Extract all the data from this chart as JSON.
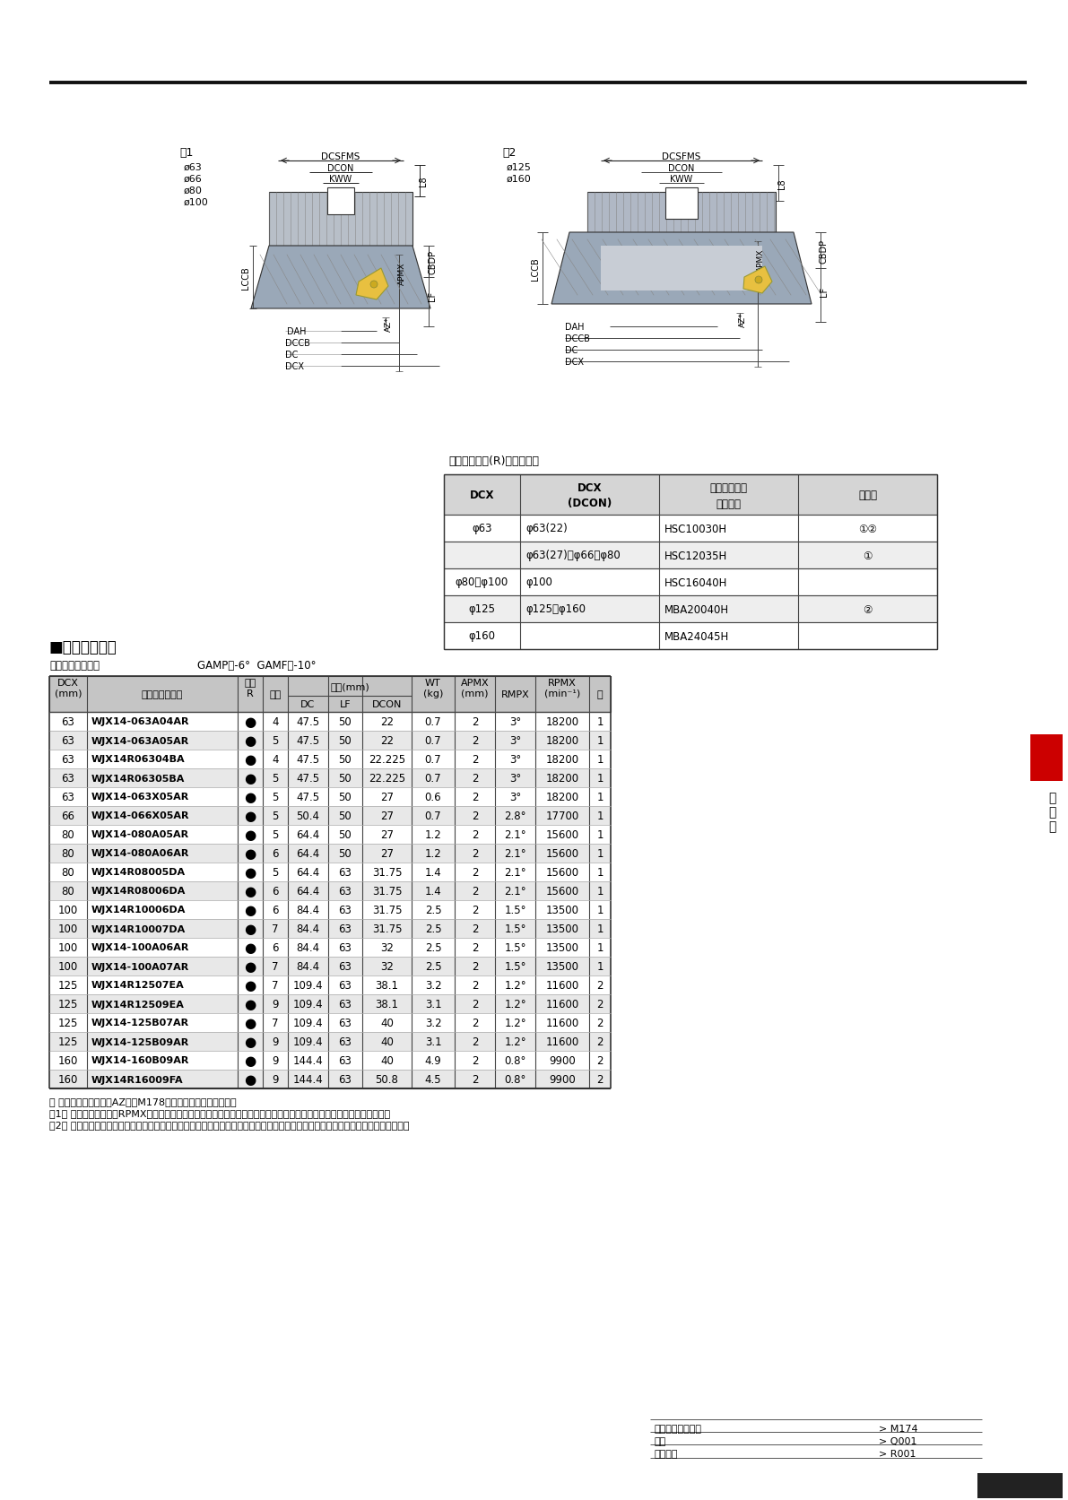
{
  "spec_note": "規格は右勝手(R)のみです。",
  "ax_star_note": "＊ 最大ドリリング深さAZは、M178ページをご参照ください。",
  "note1": "注1） 最高許容回転速度RPMXは、遠心力によるインサート飛散・ボディ破損を生じないという条件で設定されています。",
  "note2": "注2） 高速回転時は、アーバなどを含めたバランス取り、およびカッタ破損を想定した安全対策などの細心の注意が必要となります。",
  "bottom_links": [
    [
      "取付け寸法一覧表",
      "> M174"
    ],
    [
      "部品",
      "> Q001"
    ],
    [
      "技術資料",
      "> R001"
    ]
  ],
  "rows": [
    {
      "dcx": "63",
      "code": "WJX14-063A04AR",
      "stock": "●",
      "blades": "4",
      "dc": "47.5",
      "lf": "50",
      "dcon": "22",
      "wt": "0.7",
      "apmx": "2",
      "rmpx": "3°",
      "rpmx": "18200",
      "zu": "1",
      "shade": false
    },
    {
      "dcx": "63",
      "code": "WJX14-063A05AR",
      "stock": "●",
      "blades": "5",
      "dc": "47.5",
      "lf": "50",
      "dcon": "22",
      "wt": "0.7",
      "apmx": "2",
      "rmpx": "3°",
      "rpmx": "18200",
      "zu": "1",
      "shade": true
    },
    {
      "dcx": "63",
      "code": "WJX14R06304BA",
      "stock": "●",
      "blades": "4",
      "dc": "47.5",
      "lf": "50",
      "dcon": "22.225",
      "wt": "0.7",
      "apmx": "2",
      "rmpx": "3°",
      "rpmx": "18200",
      "zu": "1",
      "shade": false
    },
    {
      "dcx": "63",
      "code": "WJX14R06305BA",
      "stock": "●",
      "blades": "5",
      "dc": "47.5",
      "lf": "50",
      "dcon": "22.225",
      "wt": "0.7",
      "apmx": "2",
      "rmpx": "3°",
      "rpmx": "18200",
      "zu": "1",
      "shade": true
    },
    {
      "dcx": "63",
      "code": "WJX14-063X05AR",
      "stock": "●",
      "blades": "5",
      "dc": "47.5",
      "lf": "50",
      "dcon": "27",
      "wt": "0.6",
      "apmx": "2",
      "rmpx": "3°",
      "rpmx": "18200",
      "zu": "1",
      "shade": false
    },
    {
      "dcx": "66",
      "code": "WJX14-066X05AR",
      "stock": "●",
      "blades": "5",
      "dc": "50.4",
      "lf": "50",
      "dcon": "27",
      "wt": "0.7",
      "apmx": "2",
      "rmpx": "2.8°",
      "rpmx": "17700",
      "zu": "1",
      "shade": true
    },
    {
      "dcx": "80",
      "code": "WJX14-080A05AR",
      "stock": "●",
      "blades": "5",
      "dc": "64.4",
      "lf": "50",
      "dcon": "27",
      "wt": "1.2",
      "apmx": "2",
      "rmpx": "2.1°",
      "rpmx": "15600",
      "zu": "1",
      "shade": false
    },
    {
      "dcx": "80",
      "code": "WJX14-080A06AR",
      "stock": "●",
      "blades": "6",
      "dc": "64.4",
      "lf": "50",
      "dcon": "27",
      "wt": "1.2",
      "apmx": "2",
      "rmpx": "2.1°",
      "rpmx": "15600",
      "zu": "1",
      "shade": true
    },
    {
      "dcx": "80",
      "code": "WJX14R08005DA",
      "stock": "●",
      "blades": "5",
      "dc": "64.4",
      "lf": "63",
      "dcon": "31.75",
      "wt": "1.4",
      "apmx": "2",
      "rmpx": "2.1°",
      "rpmx": "15600",
      "zu": "1",
      "shade": false
    },
    {
      "dcx": "80",
      "code": "WJX14R08006DA",
      "stock": "●",
      "blades": "6",
      "dc": "64.4",
      "lf": "63",
      "dcon": "31.75",
      "wt": "1.4",
      "apmx": "2",
      "rmpx": "2.1°",
      "rpmx": "15600",
      "zu": "1",
      "shade": true
    },
    {
      "dcx": "100",
      "code": "WJX14R10006DA",
      "stock": "●",
      "blades": "6",
      "dc": "84.4",
      "lf": "63",
      "dcon": "31.75",
      "wt": "2.5",
      "apmx": "2",
      "rmpx": "1.5°",
      "rpmx": "13500",
      "zu": "1",
      "shade": false
    },
    {
      "dcx": "100",
      "code": "WJX14R10007DA",
      "stock": "●",
      "blades": "7",
      "dc": "84.4",
      "lf": "63",
      "dcon": "31.75",
      "wt": "2.5",
      "apmx": "2",
      "rmpx": "1.5°",
      "rpmx": "13500",
      "zu": "1",
      "shade": true
    },
    {
      "dcx": "100",
      "code": "WJX14-100A06AR",
      "stock": "●",
      "blades": "6",
      "dc": "84.4",
      "lf": "63",
      "dcon": "32",
      "wt": "2.5",
      "apmx": "2",
      "rmpx": "1.5°",
      "rpmx": "13500",
      "zu": "1",
      "shade": false
    },
    {
      "dcx": "100",
      "code": "WJX14-100A07AR",
      "stock": "●",
      "blades": "7",
      "dc": "84.4",
      "lf": "63",
      "dcon": "32",
      "wt": "2.5",
      "apmx": "2",
      "rmpx": "1.5°",
      "rpmx": "13500",
      "zu": "1",
      "shade": true
    },
    {
      "dcx": "125",
      "code": "WJX14R12507EA",
      "stock": "●",
      "blades": "7",
      "dc": "109.4",
      "lf": "63",
      "dcon": "38.1",
      "wt": "3.2",
      "apmx": "2",
      "rmpx": "1.2°",
      "rpmx": "11600",
      "zu": "2",
      "shade": false
    },
    {
      "dcx": "125",
      "code": "WJX14R12509EA",
      "stock": "●",
      "blades": "9",
      "dc": "109.4",
      "lf": "63",
      "dcon": "38.1",
      "wt": "3.1",
      "apmx": "2",
      "rmpx": "1.2°",
      "rpmx": "11600",
      "zu": "2",
      "shade": true
    },
    {
      "dcx": "125",
      "code": "WJX14-125B07AR",
      "stock": "●",
      "blades": "7",
      "dc": "109.4",
      "lf": "63",
      "dcon": "40",
      "wt": "3.2",
      "apmx": "2",
      "rmpx": "1.2°",
      "rpmx": "11600",
      "zu": "2",
      "shade": false
    },
    {
      "dcx": "125",
      "code": "WJX14-125B09AR",
      "stock": "●",
      "blades": "9",
      "dc": "109.4",
      "lf": "63",
      "dcon": "40",
      "wt": "3.1",
      "apmx": "2",
      "rmpx": "1.2°",
      "rpmx": "11600",
      "zu": "2",
      "shade": true
    },
    {
      "dcx": "160",
      "code": "WJX14-160B09AR",
      "stock": "●",
      "blades": "9",
      "dc": "144.4",
      "lf": "63",
      "dcon": "40",
      "wt": "4.9",
      "apmx": "2",
      "rmpx": "0.8°",
      "rpmx": "9900",
      "zu": "2",
      "shade": false
    },
    {
      "dcx": "160",
      "code": "WJX14R16009FA",
      "stock": "●",
      "blades": "9",
      "dc": "144.4",
      "lf": "63",
      "dcon": "50.8",
      "wt": "4.5",
      "apmx": "2",
      "rmpx": "0.8°",
      "rpmx": "9900",
      "zu": "2",
      "shade": true
    }
  ]
}
